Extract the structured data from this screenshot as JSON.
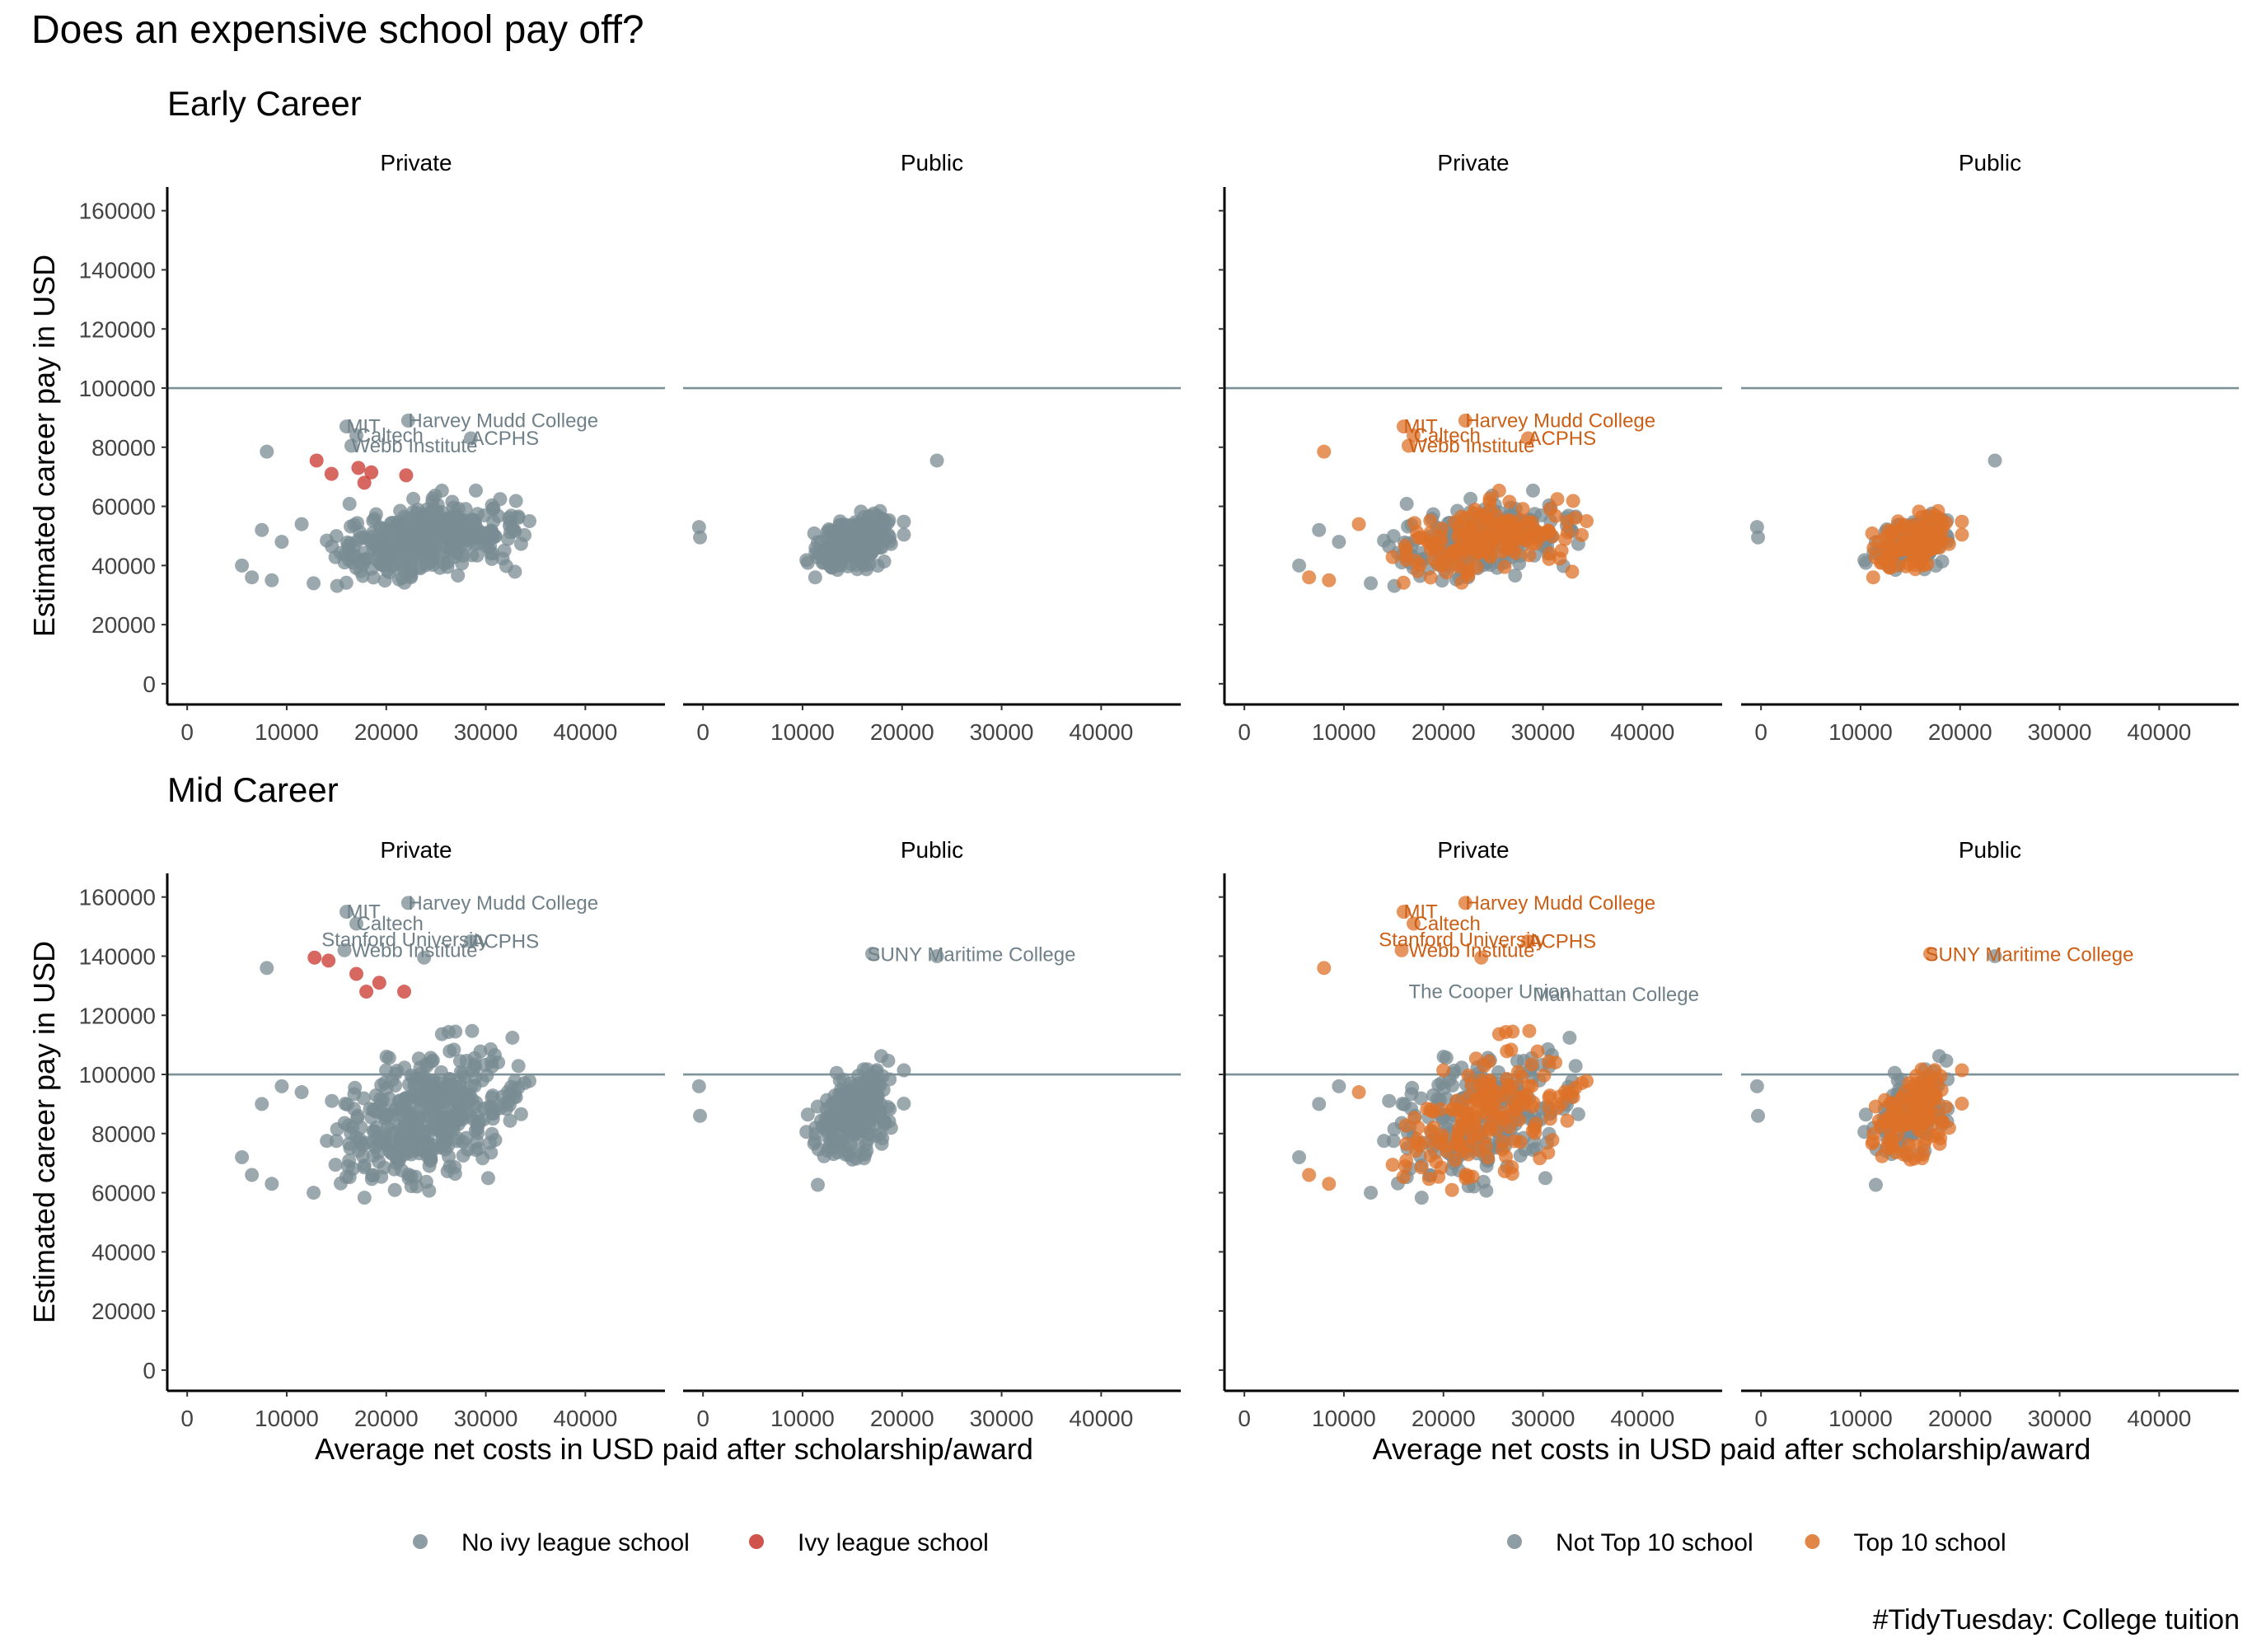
{
  "title": "Does an expensive school pay off?",
  "caption": "#TidyTuesday: College tuition",
  "rows": [
    {
      "key": "early",
      "label": "Early Career",
      "ylabel": "Estimated career pay in USD"
    },
    {
      "key": "mid",
      "label": "Mid Career",
      "ylabel": "Estimated career pay in USD"
    }
  ],
  "xlabel": "Average net costs in USD paid after scholarship/award",
  "facet_labels": [
    "Private",
    "Public"
  ],
  "y_ticks": [
    "0",
    "20000",
    "40000",
    "60000",
    "80000",
    "100000",
    "120000",
    "140000",
    "160000"
  ],
  "x_ticks": [
    "0",
    "10000",
    "20000",
    "30000",
    "40000"
  ],
  "reference_line_y": 100000,
  "colors": {
    "gray": "#7a8c93",
    "ivy": "#c8362c",
    "top10": "#dd7128",
    "line": "#7d9298",
    "axis": "#000000"
  },
  "legends": {
    "left": [
      {
        "label": "No ivy league school",
        "color": "#7a8c93"
      },
      {
        "label": "Ivy league school",
        "color": "#c8362c"
      }
    ],
    "right": [
      {
        "label": "Not Top 10 school",
        "color": "#7a8c93"
      },
      {
        "label": "Top 10 school",
        "color": "#dd7128"
      }
    ]
  },
  "chart_data": {
    "type": "scatter",
    "title": "Does an expensive school pay off?",
    "xlabel": "Average net costs in USD paid after scholarship/award",
    "ylabel": "Estimated career pay in USD",
    "xlim": [
      -2000,
      48000
    ],
    "ylim": [
      -7000,
      168000
    ],
    "facets": {
      "rows": [
        "Early Career",
        "Mid Career"
      ],
      "columns": [
        "Private",
        "Public"
      ],
      "panel_groups": [
        "ivy league",
        "top 10"
      ]
    },
    "highlighted": {
      "ivy": {
        "early": [
          [
            13000,
            75500
          ],
          [
            14500,
            71000
          ],
          [
            17200,
            73000
          ],
          [
            17800,
            68000
          ],
          [
            18500,
            71500
          ],
          [
            22000,
            70500
          ]
        ],
        "mid": [
          [
            12800,
            139500
          ],
          [
            14200,
            138500
          ],
          [
            17000,
            134000
          ],
          [
            18000,
            128000
          ],
          [
            19300,
            131000
          ],
          [
            21800,
            128000
          ]
        ]
      },
      "top10_labeled": {
        "early": [
          [
            16000,
            87000
          ],
          [
            17000,
            84000
          ],
          [
            16500,
            80500
          ],
          [
            22200,
            89000
          ],
          [
            28500,
            83000
          ]
        ],
        "mid": [
          [
            16000,
            155000
          ],
          [
            17000,
            151000
          ],
          [
            15800,
            142000
          ],
          [
            22200,
            158000
          ],
          [
            28500,
            145000
          ],
          [
            23800,
            139500
          ]
        ]
      }
    },
    "labels": {
      "early_private": [
        {
          "text": "MIT",
          "x": 16000,
          "y": 87000
        },
        {
          "text": "Caltech",
          "x": 17000,
          "y": 84000
        },
        {
          "text": "Webb Institute",
          "x": 16500,
          "y": 80500
        },
        {
          "text": "Harvey Mudd College",
          "x": 22200,
          "y": 89000
        },
        {
          "text": "ACPHS",
          "x": 28500,
          "y": 83000
        }
      ],
      "mid_private": [
        {
          "text": "MIT",
          "x": 16000,
          "y": 155000
        },
        {
          "text": "Caltech",
          "x": 17000,
          "y": 151000
        },
        {
          "text": "Stanford University",
          "x": 13500,
          "y": 145500
        },
        {
          "text": "Webb Institute",
          "x": 16500,
          "y": 142000
        },
        {
          "text": "Harvey Mudd College",
          "x": 22200,
          "y": 158000
        },
        {
          "text": "ACPHS",
          "x": 28500,
          "y": 145000
        }
      ],
      "mid_public": [
        {
          "text": "SUNY Maritime College",
          "x": 16500,
          "y": 140500
        }
      ],
      "mid_private_top10_extra": [
        {
          "text": "The Cooper Union",
          "x": 16500,
          "y": 128000
        },
        {
          "text": "Manhattan College",
          "x": 29000,
          "y": 127000
        }
      ]
    }
  }
}
